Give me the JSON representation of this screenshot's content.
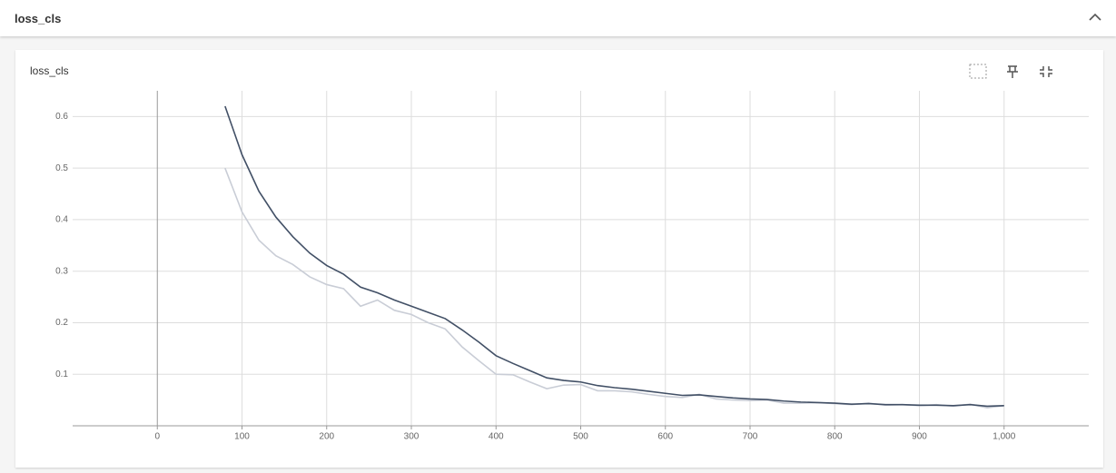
{
  "header": {
    "title": "loss_cls"
  },
  "card": {
    "title": "loss_cls"
  },
  "chart_data": {
    "type": "line",
    "x": [
      80,
      100,
      120,
      140,
      160,
      180,
      200,
      220,
      240,
      260,
      280,
      300,
      320,
      340,
      360,
      380,
      400,
      420,
      440,
      460,
      480,
      500,
      520,
      540,
      560,
      580,
      600,
      620,
      640,
      660,
      680,
      700,
      720,
      740,
      760,
      780,
      800,
      820,
      840,
      860,
      880,
      900,
      920,
      940,
      960,
      980,
      1000
    ],
    "series": [
      {
        "color": "#c9cdd6",
        "values": [
          0.5,
          0.415,
          0.36,
          0.33,
          0.313,
          0.289,
          0.274,
          0.266,
          0.232,
          0.244,
          0.224,
          0.216,
          0.2,
          0.188,
          0.153,
          0.126,
          0.1,
          0.099,
          0.085,
          0.072,
          0.079,
          0.08,
          0.068,
          0.068,
          0.066,
          0.061,
          0.057,
          0.055,
          0.061,
          0.052,
          0.05,
          0.049,
          0.05,
          0.044,
          0.044,
          0.045,
          0.043,
          0.041,
          0.044,
          0.04,
          0.041,
          0.039,
          0.041,
          0.038,
          0.042,
          0.035,
          0.039
        ]
      },
      {
        "color": "#425066",
        "values": [
          0.62,
          0.526,
          0.455,
          0.405,
          0.367,
          0.335,
          0.311,
          0.294,
          0.269,
          0.258,
          0.244,
          0.232,
          0.22,
          0.208,
          0.186,
          0.162,
          0.136,
          0.121,
          0.107,
          0.093,
          0.088,
          0.085,
          0.078,
          0.074,
          0.071,
          0.067,
          0.063,
          0.059,
          0.06,
          0.057,
          0.054,
          0.052,
          0.051,
          0.048,
          0.046,
          0.045,
          0.044,
          0.042,
          0.043,
          0.041,
          0.041,
          0.04,
          0.04,
          0.039,
          0.041,
          0.038,
          0.039
        ]
      }
    ],
    "xlim": [
      -100,
      1100
    ],
    "ylim": [
      0,
      0.65
    ],
    "xticks": [
      0,
      100,
      200,
      300,
      400,
      500,
      600,
      700,
      800,
      900,
      {
        "value": 1000,
        "label": "1,000"
      }
    ],
    "yticks": [
      0.1,
      0.2,
      0.3,
      0.4,
      0.5,
      0.6
    ],
    "grid": true
  }
}
